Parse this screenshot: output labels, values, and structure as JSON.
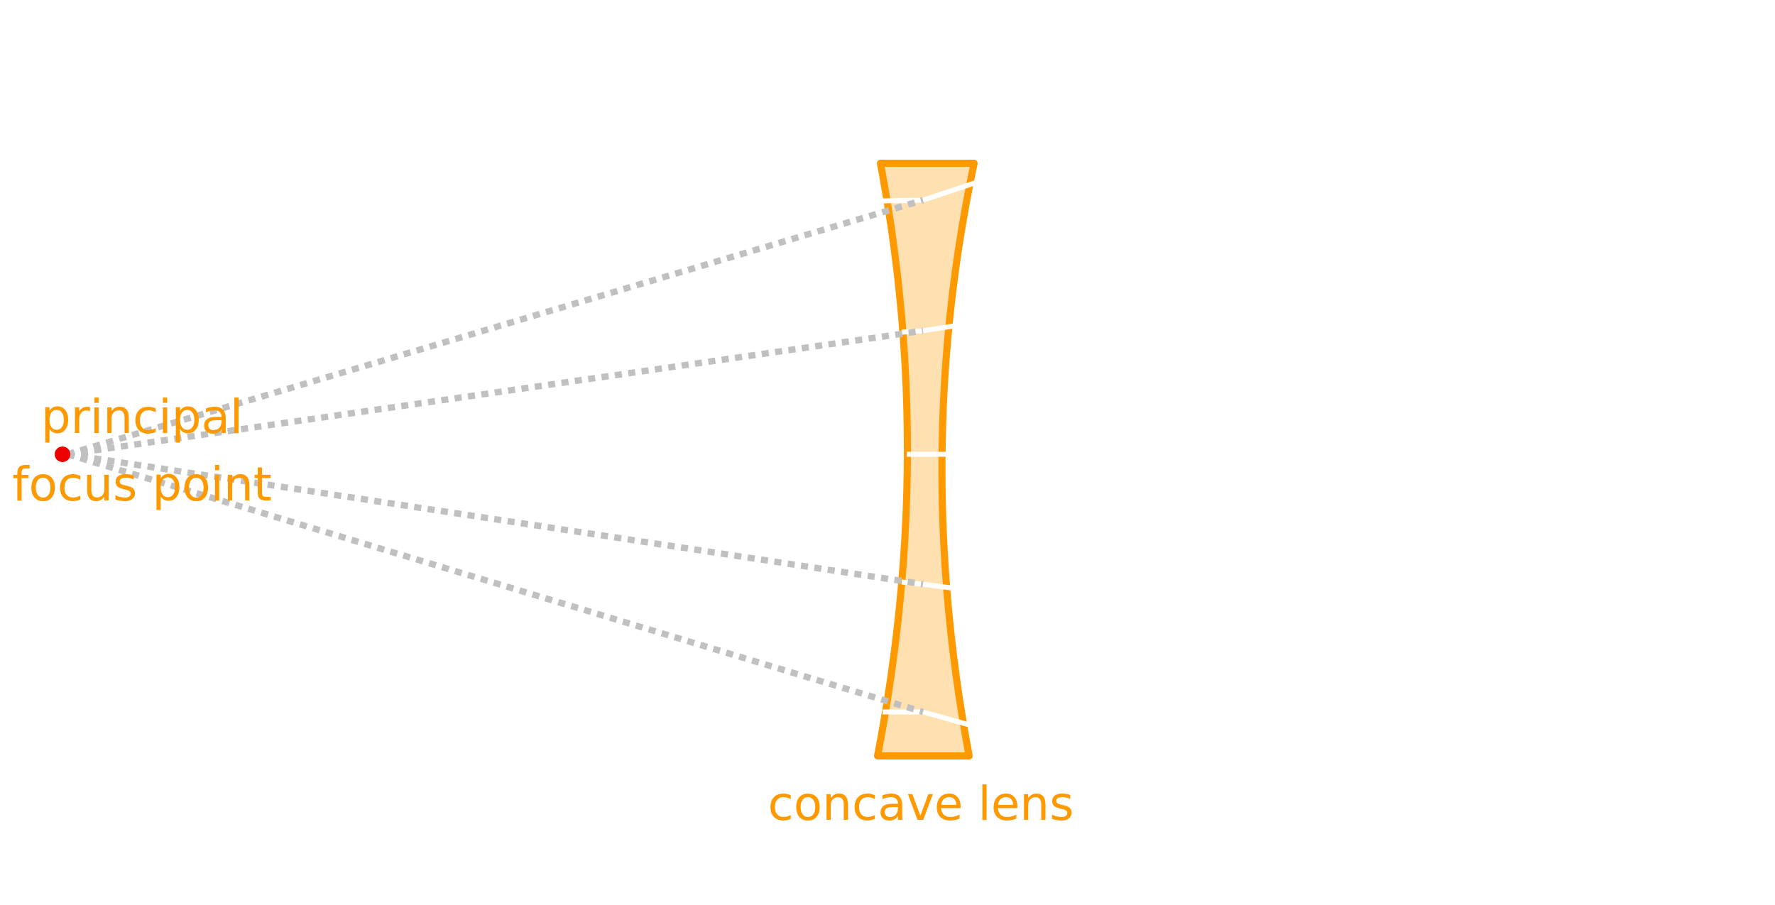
{
  "colors": {
    "lens_stroke": "#FF9900",
    "lens_fill": "#FFE0B0",
    "ray": "#C0C0C0",
    "ray_in_lens": "#FFFFFF",
    "focus_point": "#EE0000",
    "label": "#FF9900"
  },
  "focus_label": {
    "line1": "principal",
    "line2": "focus point"
  },
  "lens_label": "concave lens"
}
